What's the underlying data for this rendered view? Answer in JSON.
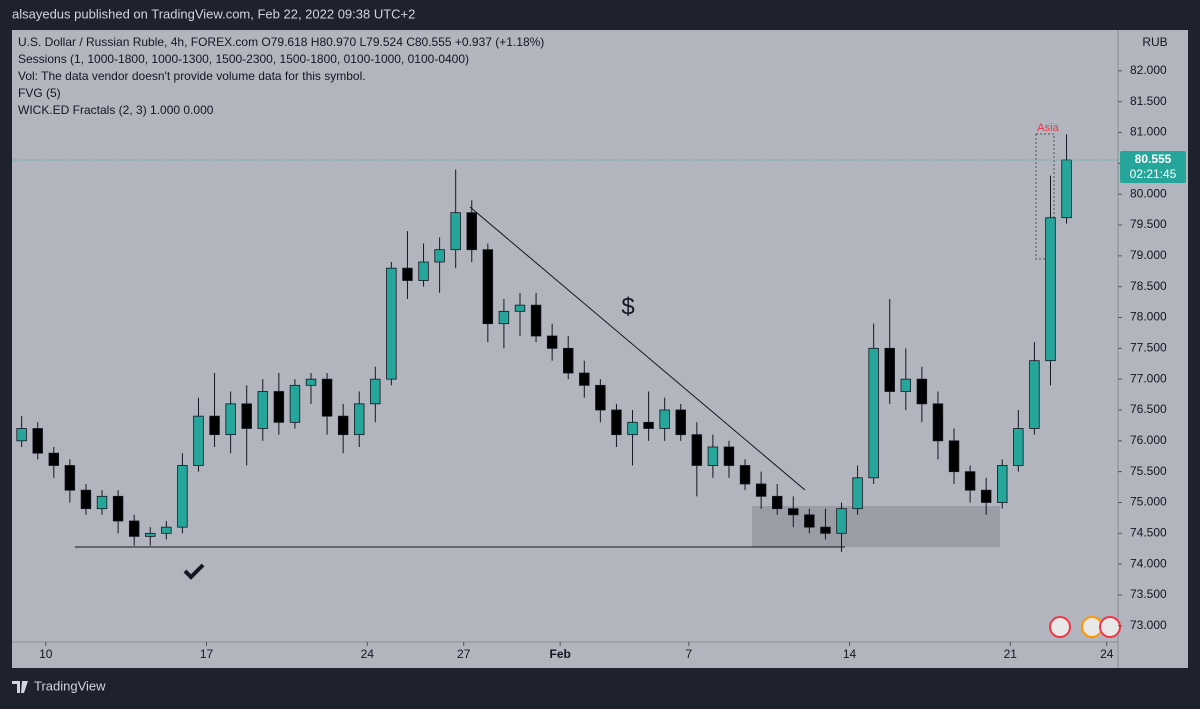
{
  "header": "alsayedus published on TradingView.com, Feb 22, 2022 09:38 UTC+2",
  "footer": "TradingView",
  "chart_data": {
    "type": "candlestick",
    "legend_lines": [
      "U.S. Dollar / Russian Ruble, 4h, FOREX.com  O79.618  H80.970  L79.524  C80.555  +0.937 (+1.18%)",
      "Sessions (1, 1000-1800, 1000-1300, 1500-2300, 1500-1800, 0100-1000, 0100-0400)",
      "Vol: The data vendor doesn't provide volume data for this symbol.",
      "FVG (5)",
      "WICK.ED Fractals (2, 3)  1.000  0.000"
    ],
    "currency": "RUB",
    "annotation": "$",
    "session_label": "Asia",
    "last_price": 80.555,
    "countdown": "02:21:45",
    "up_color": "#26a69a",
    "down_color": "#000000",
    "candles": [
      [
        76.0,
        76.4,
        75.9,
        76.2
      ],
      [
        76.2,
        76.3,
        75.7,
        75.8
      ],
      [
        75.8,
        75.9,
        75.4,
        75.6
      ],
      [
        75.6,
        75.7,
        75.0,
        75.2
      ],
      [
        75.2,
        75.3,
        74.8,
        74.9
      ],
      [
        74.9,
        75.2,
        74.8,
        75.1
      ],
      [
        75.1,
        75.2,
        74.5,
        74.7
      ],
      [
        74.7,
        74.8,
        74.3,
        74.45
      ],
      [
        74.45,
        74.6,
        74.3,
        74.5
      ],
      [
        74.5,
        74.7,
        74.4,
        74.6
      ],
      [
        74.6,
        75.8,
        74.5,
        75.6
      ],
      [
        75.6,
        76.7,
        75.5,
        76.4
      ],
      [
        76.4,
        77.1,
        75.9,
        76.1
      ],
      [
        76.1,
        76.8,
        75.8,
        76.6
      ],
      [
        76.6,
        76.9,
        75.6,
        76.2
      ],
      [
        76.2,
        77.0,
        76.0,
        76.8
      ],
      [
        76.8,
        77.1,
        76.1,
        76.3
      ],
      [
        76.3,
        77.0,
        76.2,
        76.9
      ],
      [
        76.9,
        77.1,
        76.6,
        77.0
      ],
      [
        77.0,
        77.1,
        76.1,
        76.4
      ],
      [
        76.4,
        76.6,
        75.8,
        76.1
      ],
      [
        76.1,
        76.8,
        75.9,
        76.6
      ],
      [
        76.6,
        77.2,
        76.3,
        77.0
      ],
      [
        77.0,
        78.9,
        76.9,
        78.8
      ],
      [
        78.8,
        79.4,
        78.3,
        78.6
      ],
      [
        78.6,
        79.2,
        78.5,
        78.9
      ],
      [
        78.9,
        79.3,
        78.4,
        79.1
      ],
      [
        79.1,
        80.4,
        78.8,
        79.7
      ],
      [
        79.7,
        79.9,
        78.9,
        79.1
      ],
      [
        79.1,
        79.2,
        77.6,
        77.9
      ],
      [
        77.9,
        78.3,
        77.5,
        78.1
      ],
      [
        78.1,
        78.4,
        77.7,
        78.2
      ],
      [
        78.2,
        78.4,
        77.6,
        77.7
      ],
      [
        77.7,
        77.9,
        77.3,
        77.5
      ],
      [
        77.5,
        77.7,
        77.0,
        77.1
      ],
      [
        77.1,
        77.3,
        76.7,
        76.9
      ],
      [
        76.9,
        77.0,
        76.3,
        76.5
      ],
      [
        76.5,
        76.6,
        75.9,
        76.1
      ],
      [
        76.1,
        76.5,
        75.6,
        76.3
      ],
      [
        76.3,
        76.8,
        76.0,
        76.2
      ],
      [
        76.2,
        76.7,
        76.0,
        76.5
      ],
      [
        76.5,
        76.6,
        76.0,
        76.1
      ],
      [
        76.1,
        76.3,
        75.1,
        75.6
      ],
      [
        75.6,
        76.1,
        75.4,
        75.9
      ],
      [
        75.9,
        76.0,
        75.4,
        75.6
      ],
      [
        75.6,
        75.7,
        75.2,
        75.3
      ],
      [
        75.3,
        75.5,
        74.9,
        75.1
      ],
      [
        75.1,
        75.3,
        74.8,
        74.9
      ],
      [
        74.9,
        75.1,
        74.6,
        74.8
      ],
      [
        74.8,
        74.9,
        74.5,
        74.6
      ],
      [
        74.6,
        74.9,
        74.4,
        74.5
      ],
      [
        74.5,
        75.0,
        74.2,
        74.9
      ],
      [
        74.9,
        75.6,
        74.8,
        75.4
      ],
      [
        75.4,
        77.9,
        75.3,
        77.5
      ],
      [
        77.5,
        78.3,
        76.6,
        76.8
      ],
      [
        76.8,
        77.5,
        76.5,
        77.0
      ],
      [
        77.0,
        77.2,
        76.3,
        76.6
      ],
      [
        76.6,
        76.8,
        75.7,
        76.0
      ],
      [
        76.0,
        76.2,
        75.3,
        75.5
      ],
      [
        75.5,
        75.6,
        75.0,
        75.2
      ],
      [
        75.2,
        75.4,
        74.8,
        75.0
      ],
      [
        75.0,
        75.7,
        74.9,
        75.6
      ],
      [
        75.6,
        76.5,
        75.5,
        76.2
      ],
      [
        76.2,
        77.6,
        76.1,
        77.3
      ],
      [
        77.3,
        80.3,
        76.9,
        79.618
      ],
      [
        79.618,
        80.97,
        79.524,
        80.555
      ]
    ],
    "xlim": [
      -0.6,
      68.2
    ],
    "xticks": [
      {
        "value": 1.5,
        "label": "10"
      },
      {
        "value": 11.5,
        "label": "17"
      },
      {
        "value": 21.5,
        "label": "24"
      },
      {
        "value": 27.5,
        "label": "27"
      },
      {
        "value": 33.5,
        "label": "Feb"
      },
      {
        "value": 41.5,
        "label": "7"
      },
      {
        "value": 51.5,
        "label": "14"
      },
      {
        "value": 61.5,
        "label": "21"
      },
      {
        "value": 67.5,
        "label": "24"
      }
    ],
    "ylim": [
      72.77,
      82.63
    ],
    "yticks": [
      {
        "value": 73,
        "label": "73.000"
      },
      {
        "value": 73.5,
        "label": "73.500"
      },
      {
        "value": 74,
        "label": "74.000"
      },
      {
        "value": 74.5,
        "label": "74.500"
      },
      {
        "value": 75,
        "label": "75.000"
      },
      {
        "value": 75.5,
        "label": "75.500"
      },
      {
        "value": 76,
        "label": "76.000"
      },
      {
        "value": 76.5,
        "label": "76.500"
      },
      {
        "value": 77,
        "label": "77.000"
      },
      {
        "value": 77.5,
        "label": "77.500"
      },
      {
        "value": 78,
        "label": "78.000"
      },
      {
        "value": 78.5,
        "label": "78.500"
      },
      {
        "value": 79,
        "label": "79.000"
      },
      {
        "value": 79.5,
        "label": "79.500"
      },
      {
        "value": 80,
        "label": "80.000"
      },
      {
        "value": 80.5,
        "label": "80.500"
      },
      {
        "value": 81,
        "label": "81.000"
      },
      {
        "value": 81.5,
        "label": "81.500"
      },
      {
        "value": 82,
        "label": "82.000"
      }
    ]
  }
}
